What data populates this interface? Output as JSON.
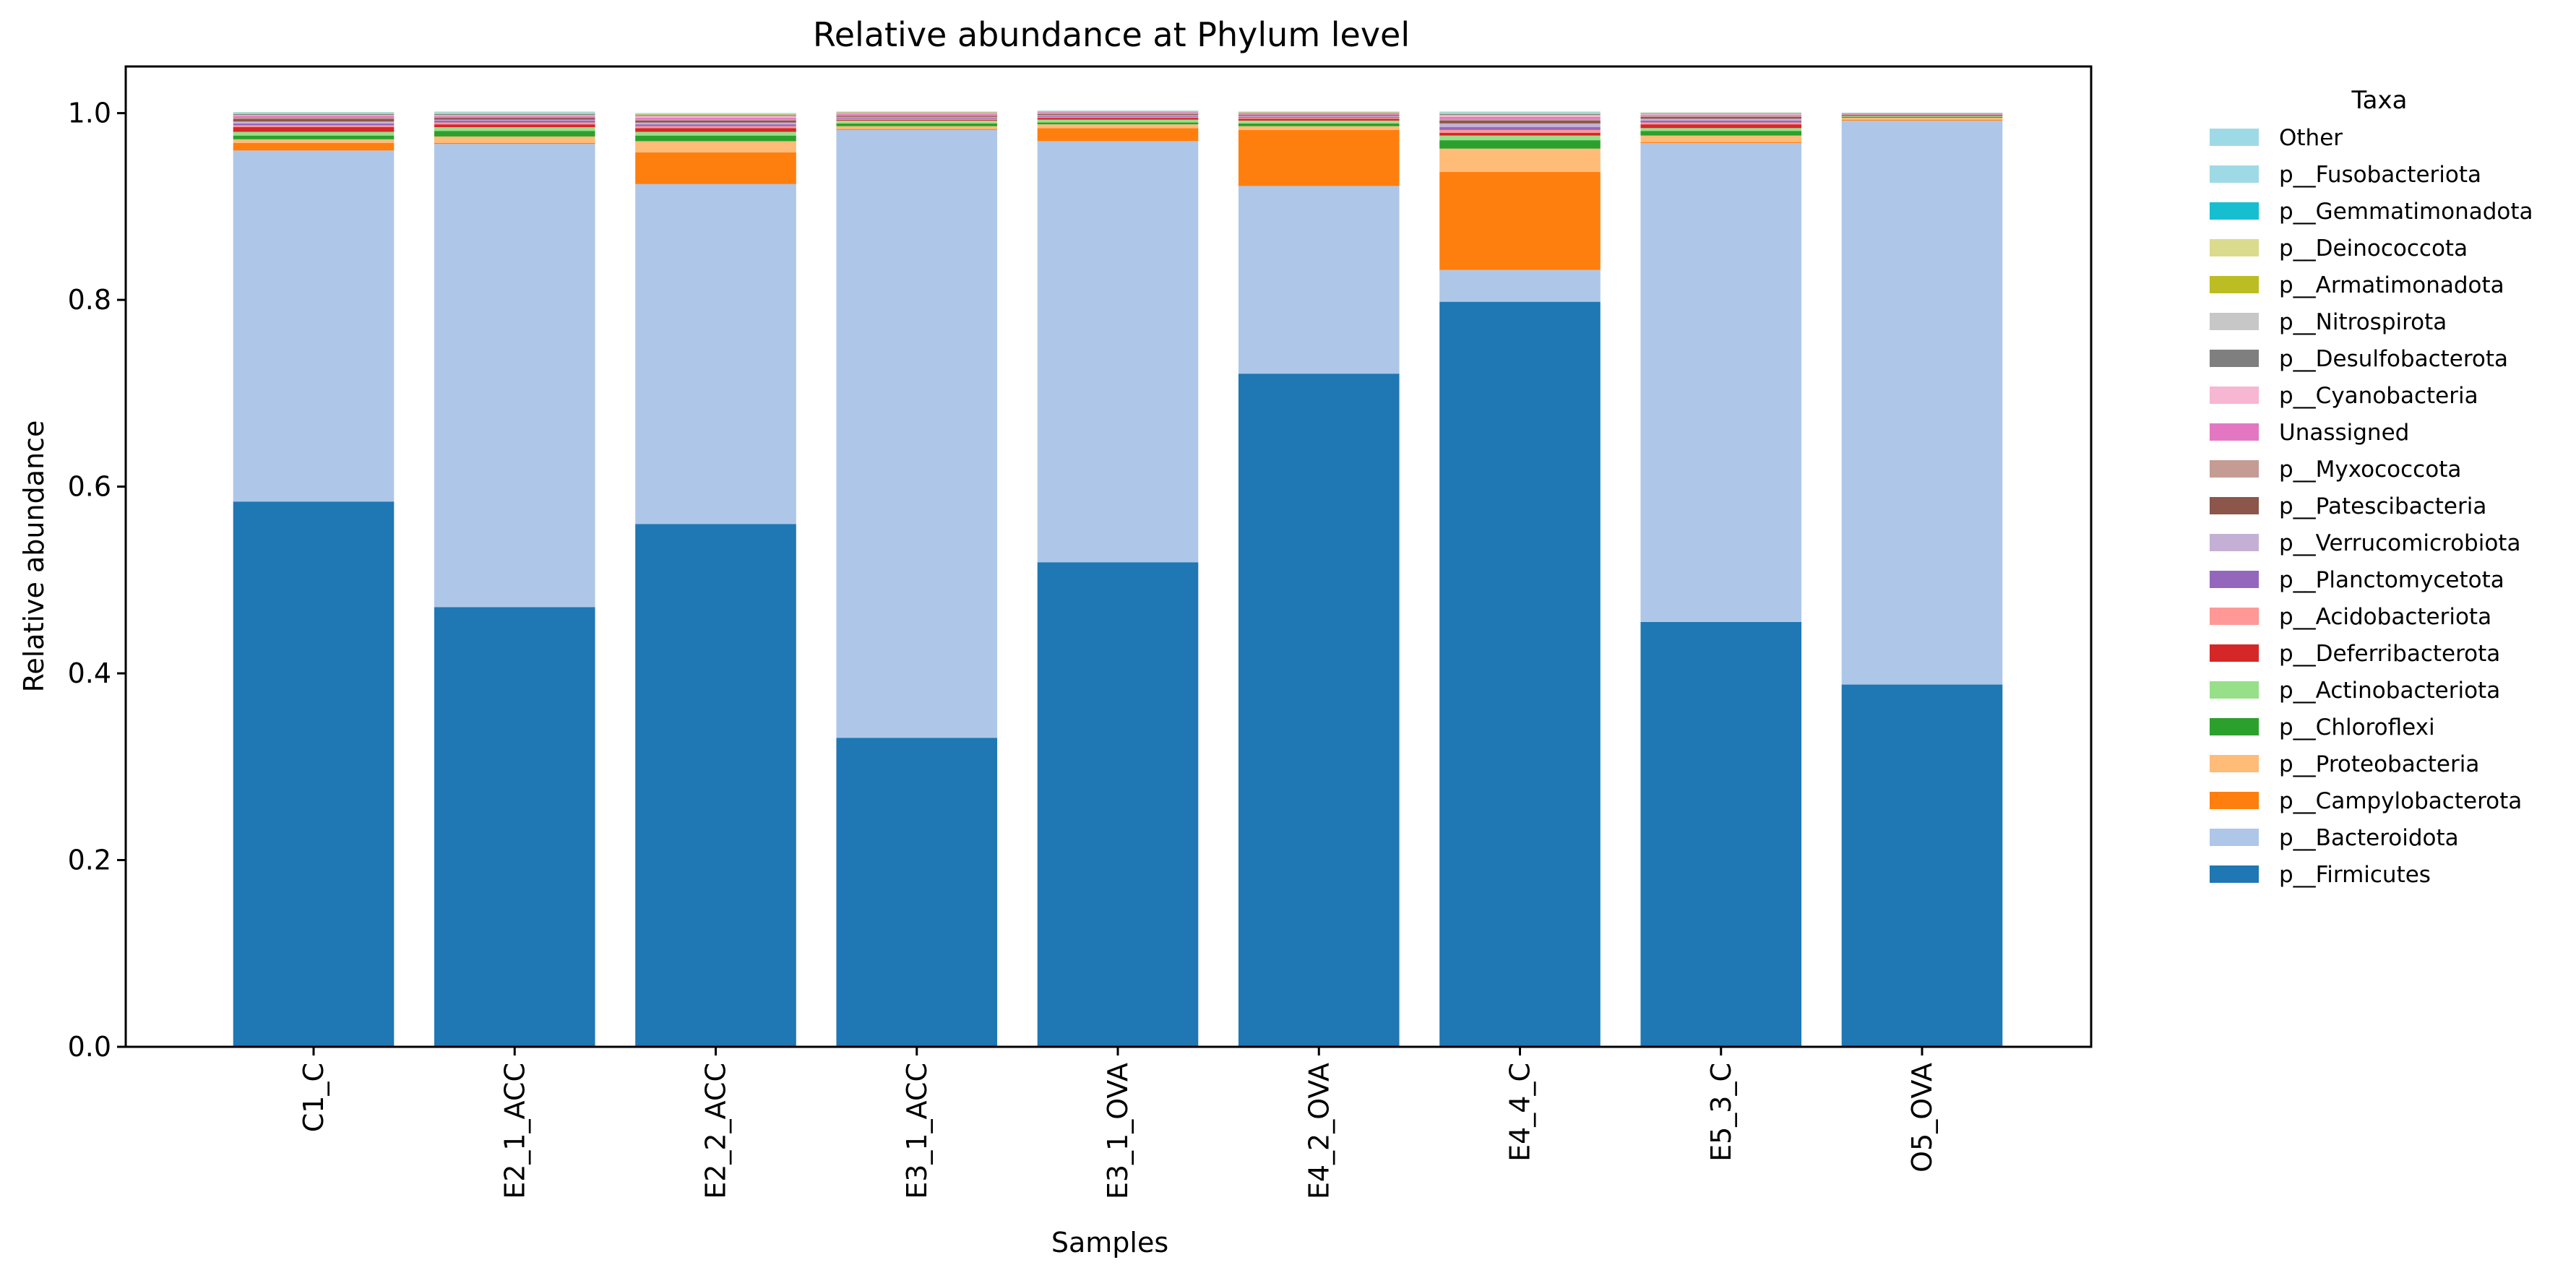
{
  "chart_data": {
    "type": "bar",
    "stacked": true,
    "title": "Relative abundance at Phylum level",
    "xlabel": "Samples",
    "ylabel": "Relative abundance",
    "ylim": [
      0,
      1.05
    ],
    "yticks": [
      "0.0",
      "0.2",
      "0.4",
      "0.6",
      "0.8",
      "1.0"
    ],
    "grid": false,
    "legend": {
      "title": "Taxa",
      "placement": "outside-right"
    },
    "categories": [
      "C1_C",
      "E2_1_ACC",
      "E2_2_ACC",
      "E3_1_ACC",
      "E3_1_OVA",
      "E4_2_OVA",
      "E4_4_C",
      "E5_3_C",
      "O5_OVA"
    ],
    "series": [
      {
        "name": "p__Firmicutes",
        "color": "#1f77b4",
        "values": [
          0.584,
          0.471,
          0.56,
          0.331,
          0.519,
          0.721,
          0.798,
          0.455,
          0.388
        ]
      },
      {
        "name": "p__Bacteroidota",
        "color": "#aec7e8",
        "values": [
          0.376,
          0.496,
          0.364,
          0.651,
          0.451,
          0.201,
          0.034,
          0.513,
          0.604
        ]
      },
      {
        "name": "p__Campylobacterota",
        "color": "#ff7f0e",
        "values": [
          0.008,
          0.001,
          0.034,
          0.001,
          0.014,
          0.06,
          0.105,
          0.001,
          0.001
        ]
      },
      {
        "name": "p__Proteobacteria",
        "color": "#ffbb78",
        "values": [
          0.004,
          0.007,
          0.012,
          0.003,
          0.004,
          0.004,
          0.025,
          0.007,
          0.002
        ]
      },
      {
        "name": "p__Chloroflexi",
        "color": "#2ca02c",
        "values": [
          0.004,
          0.006,
          0.006,
          0.003,
          0.002,
          0.003,
          0.009,
          0.005,
          0.001
        ]
      },
      {
        "name": "p__Actinobacteriota",
        "color": "#98df8a",
        "values": [
          0.004,
          0.004,
          0.004,
          0.003,
          0.003,
          0.003,
          0.005,
          0.003,
          0.001
        ]
      },
      {
        "name": "p__Deferribacterota",
        "color": "#d62728",
        "values": [
          0.005,
          0.003,
          0.004,
          0.001,
          0.002,
          0.002,
          0.003,
          0.004,
          0.001
        ]
      },
      {
        "name": "p__Acidobacteriota",
        "color": "#ff9896",
        "values": [
          0.002,
          0.002,
          0.002,
          0.001,
          0.001,
          0.001,
          0.003,
          0.002,
          0.0005
        ]
      },
      {
        "name": "p__Planctomycetota",
        "color": "#9467bd",
        "values": [
          0.002,
          0.002,
          0.002,
          0.001,
          0.001,
          0.001,
          0.003,
          0.002,
          0.0003
        ]
      },
      {
        "name": "p__Verrucomicrobiota",
        "color": "#c5b0d5",
        "values": [
          0.002,
          0.001,
          0.002,
          0.001,
          0.001,
          0.001,
          0.004,
          0.002,
          0.0003
        ]
      },
      {
        "name": "p__Patescibacteria",
        "color": "#8c564b",
        "values": [
          0.003,
          0.002,
          0.002,
          0.001,
          0.001,
          0.001,
          0.003,
          0.002,
          0.0003
        ]
      },
      {
        "name": "p__Myxococcota",
        "color": "#c49c94",
        "values": [
          0.001,
          0.001,
          0.001,
          0.001,
          0.0005,
          0.0005,
          0.002,
          0.001,
          0.0002
        ]
      },
      {
        "name": "Unassigned",
        "color": "#e377c2",
        "values": [
          0.002,
          0.001,
          0.002,
          0.001,
          0.001,
          0.001,
          0.002,
          0.001,
          0.0002
        ]
      },
      {
        "name": "p__Cyanobacteria",
        "color": "#f7b6d2",
        "values": [
          0.001,
          0.001,
          0.002,
          0.001,
          0.0005,
          0.0005,
          0.002,
          0.001,
          0.0001
        ]
      },
      {
        "name": "p__Desulfobacterota",
        "color": "#7f7f7f",
        "values": [
          0.001,
          0.001,
          0.001,
          0.0005,
          0.0005,
          0.0005,
          0.001,
          0.0005,
          0.0001
        ]
      },
      {
        "name": "p__Nitrospirota",
        "color": "#c7c7c7",
        "values": [
          0.0005,
          0.0005,
          0.0005,
          0.0003,
          0.0003,
          0.0003,
          0.0005,
          0.0003,
          0.0001
        ]
      },
      {
        "name": "p__Armatimonadota",
        "color": "#bcbd22",
        "values": [
          0.0005,
          0.0005,
          0.0005,
          0.0003,
          0.0003,
          0.0003,
          0.0005,
          0.0003,
          0.0001
        ]
      },
      {
        "name": "p__Deinococcota",
        "color": "#dbdb8d",
        "values": [
          0.0003,
          0.0003,
          0.0003,
          0.0002,
          0.0002,
          0.0002,
          0.0003,
          0.0002,
          0.0001
        ]
      },
      {
        "name": "p__Gemmatimonadota",
        "color": "#17becf",
        "values": [
          0.0002,
          0.0002,
          0.0002,
          0.0001,
          0.0001,
          0.0001,
          0.0002,
          0.0001,
          0.0001
        ]
      },
      {
        "name": "p__Fusobacteriota",
        "color": "#9edae5",
        "values": [
          0.0002,
          0.0002,
          0.0002,
          0.0001,
          0.0001,
          0.0001,
          0.0002,
          0.0001,
          0.0001
        ]
      },
      {
        "name": "Other",
        "color": "#9edae5",
        "values": [
          0.0005,
          0.001,
          0.0005,
          0.0003,
          0.0003,
          0.0003,
          0.001,
          0.0003,
          0.0001
        ]
      }
    ]
  }
}
